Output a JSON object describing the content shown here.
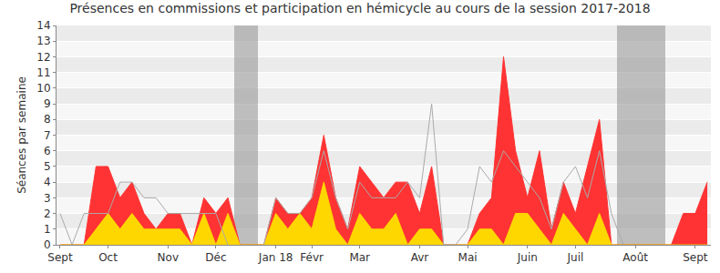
{
  "chart_data": {
    "type": "area",
    "title": "Présences en commissions et participation en hémicycle au cours de la session 2017-2018",
    "y_label": "Séances par semaine",
    "categories": [
      "Sept",
      null,
      null,
      null,
      "Oct",
      null,
      null,
      null,
      null,
      "Nov",
      null,
      null,
      null,
      "Déc",
      null,
      null,
      null,
      null,
      "Jan 18",
      null,
      null,
      "Févr",
      null,
      null,
      null,
      "Mar",
      null,
      null,
      null,
      null,
      "Avr",
      null,
      null,
      null,
      "Mai",
      null,
      null,
      null,
      null,
      "Juin",
      null,
      null,
      null,
      "Juil",
      null,
      null,
      null,
      null,
      "Août",
      null,
      null,
      null,
      null,
      "Sept",
      null
    ],
    "series": [
      {
        "type": "bar",
        "color": "#999999",
        "values": [
          0,
          0,
          0,
          0,
          0,
          0,
          0,
          0,
          0,
          0,
          0,
          0,
          0,
          0,
          0,
          14,
          14,
          0,
          0,
          0,
          0,
          0,
          0,
          0,
          0,
          0,
          0,
          0,
          0,
          0,
          0,
          0,
          0,
          0,
          0,
          0,
          0,
          0,
          0,
          0,
          0,
          0,
          0,
          0,
          0,
          0,
          0,
          14,
          14,
          14,
          14,
          0,
          0,
          0,
          0
        ]
      },
      {
        "type": "area",
        "color": "#ff3333",
        "values": [
          0,
          0,
          0,
          5,
          5,
          3,
          4,
          2,
          1,
          2,
          2,
          0,
          3,
          2,
          3,
          0,
          0,
          0,
          3,
          2,
          2,
          3,
          7,
          3,
          1,
          5,
          4,
          3,
          4,
          4,
          2,
          5,
          0,
          0,
          0,
          2,
          3,
          12,
          6,
          3,
          6,
          1,
          4,
          2,
          5,
          8,
          0,
          0,
          0,
          0,
          0,
          0,
          2,
          2,
          4
        ]
      },
      {
        "type": "area",
        "color": "#ffd700",
        "values": [
          0,
          0,
          0,
          1,
          2,
          1,
          2,
          1,
          1,
          1,
          1,
          0,
          2,
          0,
          2,
          0,
          0,
          0,
          2,
          1,
          2,
          1,
          4,
          1,
          0,
          2,
          1,
          1,
          2,
          0,
          1,
          1,
          0,
          0,
          0,
          1,
          1,
          0,
          2,
          2,
          1,
          0,
          2,
          1,
          0,
          2,
          0,
          0,
          0,
          0,
          0,
          0,
          0,
          0,
          0
        ]
      },
      {
        "type": "line",
        "color": "#aaaaaa",
        "values": [
          2,
          0,
          2,
          2,
          2,
          4,
          4,
          3,
          3,
          2,
          2,
          2,
          2,
          2,
          0,
          null,
          null,
          0,
          3,
          2,
          2,
          3,
          6,
          3,
          1,
          4,
          3,
          3,
          3,
          4,
          3,
          9,
          0,
          0,
          1,
          5,
          4,
          6,
          5,
          4,
          3,
          1,
          4,
          5,
          3,
          6,
          2,
          0,
          null,
          null,
          null,
          null,
          null,
          null,
          null
        ]
      },
      {
        "type": "bar",
        "color": "#6666ff",
        "values": [
          0,
          0,
          0,
          0,
          0,
          0,
          0,
          0,
          0,
          0,
          0,
          0,
          0,
          0,
          0,
          0,
          0,
          0,
          0,
          0,
          0,
          0,
          0,
          0,
          0,
          1,
          0,
          0,
          0,
          0,
          0,
          0,
          0,
          0,
          0,
          0,
          0,
          0,
          0,
          1,
          0,
          0,
          0,
          0,
          0,
          0,
          0,
          0,
          0,
          0,
          0,
          0,
          0,
          0,
          0
        ]
      }
    ],
    "ylim": [
      0,
      14
    ],
    "yticks": [
      0,
      1,
      2,
      3,
      4,
      5,
      6,
      7,
      8,
      9,
      10,
      11,
      12,
      13,
      14
    ],
    "grid": true
  }
}
